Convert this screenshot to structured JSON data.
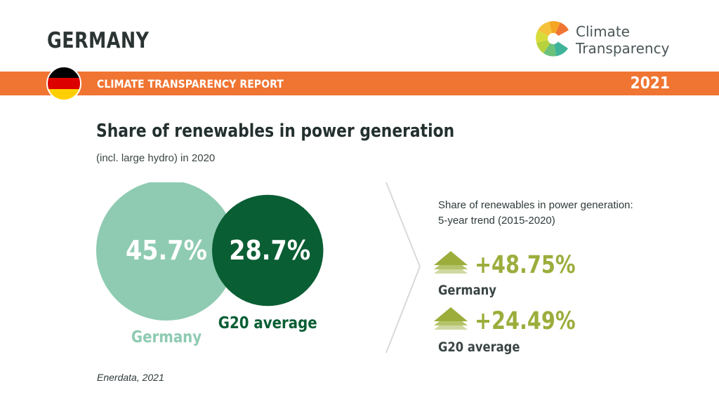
{
  "header": {
    "country": "GERMANY",
    "logo_text_line1": "Climate",
    "logo_text_line2": "Transparency",
    "report_label": "CLIMATE TRANSPARENCY REPORT",
    "year": "2021"
  },
  "colors": {
    "orange": "#f07432",
    "germany_circle": "#8ecbb2",
    "g20_circle": "#0a5e34",
    "trend_green": "#9cad3c"
  },
  "chart_data": {
    "type": "bubble",
    "title": "Share of renewables in power generation",
    "subtitle": "(incl. large hydro) in 2020",
    "unit": "%",
    "series": [
      {
        "name": "Germany",
        "value": 45.7,
        "label": "45.7%",
        "color": "#8ecbb2"
      },
      {
        "name": "G20 average",
        "value": 28.7,
        "label": "28.7%",
        "color": "#0a5e34"
      }
    ]
  },
  "trend": {
    "title_line1": "Share of renewables in power generation:",
    "title_line2": "5-year trend (2015-2020)",
    "items": [
      {
        "name": "Germany",
        "value": "+48.75%"
      },
      {
        "name": "G20 average",
        "value": "+24.49%"
      }
    ]
  },
  "source": "Enerdata, 2021"
}
